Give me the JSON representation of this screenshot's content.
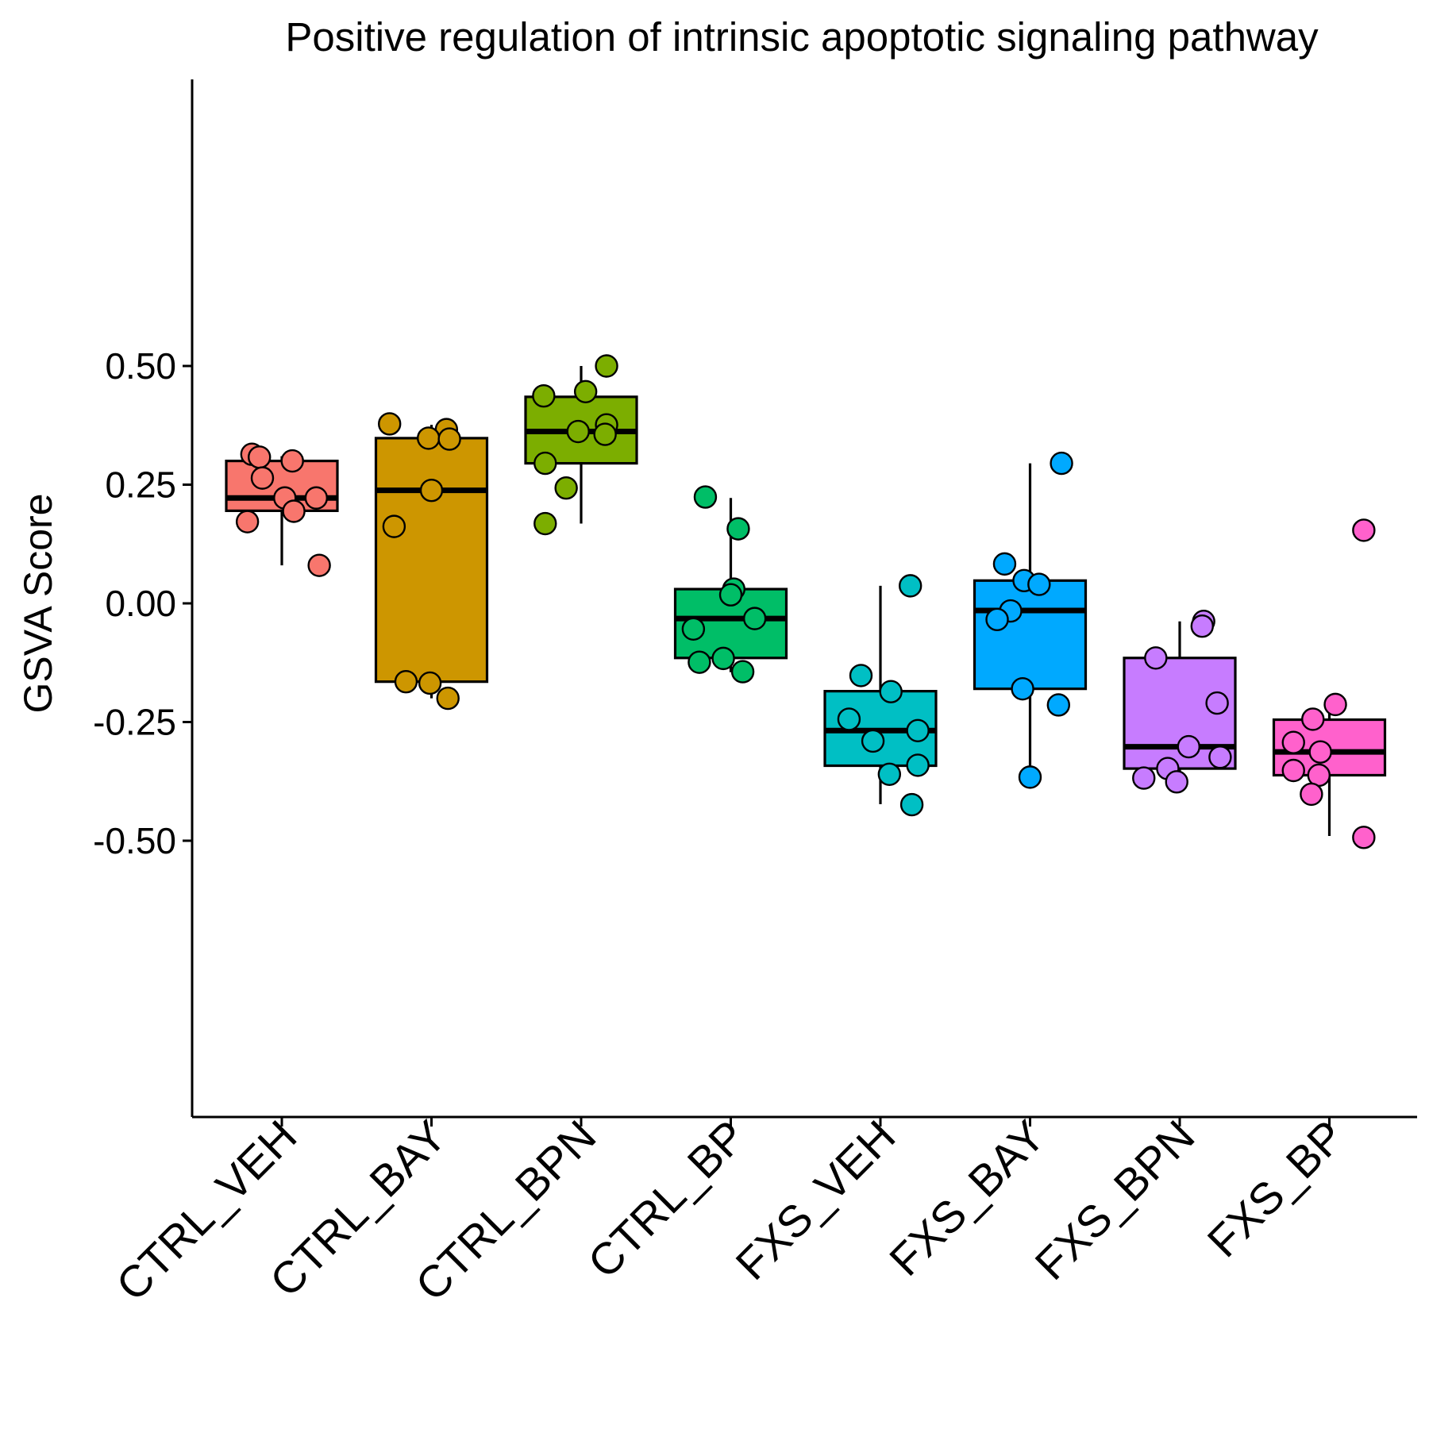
{
  "chart_data": {
    "type": "box",
    "title": "Positive regulation of intrinsic apoptotic signaling pathway",
    "ylabel": "GSVA Score",
    "xlabel": "",
    "ylim": [
      -0.55,
      0.55
    ],
    "yticks": [
      0.5,
      0.25,
      0.0,
      -0.25,
      -0.5
    ],
    "ytick_labels": [
      "0.50",
      "0.25",
      "0.00",
      "-0.25",
      "-0.50"
    ],
    "grid": false,
    "legend": "none",
    "groups": [
      {
        "name": "CTRL_VEH",
        "color": "#F8766D",
        "box": {
          "whisker_low": 0.08,
          "q1": 0.195,
          "median": 0.222,
          "q3": 0.3,
          "whisker_high": 0.31
        },
        "points": [
          {
            "y": 0.314,
            "j": -0.2
          },
          {
            "y": 0.308,
            "j": -0.15
          },
          {
            "y": 0.3,
            "j": 0.07
          },
          {
            "y": 0.264,
            "j": -0.13
          },
          {
            "y": 0.222,
            "j": 0.02
          },
          {
            "y": 0.222,
            "j": 0.23
          },
          {
            "y": 0.194,
            "j": 0.08
          },
          {
            "y": 0.172,
            "j": -0.23
          },
          {
            "y": 0.08,
            "j": 0.25
          }
        ]
      },
      {
        "name": "CTRL_BAY",
        "color": "#CD9600",
        "box": {
          "whisker_low": -0.2,
          "q1": -0.165,
          "median": 0.238,
          "q3": 0.348,
          "whisker_high": 0.376
        },
        "points": [
          {
            "y": 0.378,
            "j": -0.28
          },
          {
            "y": 0.366,
            "j": 0.1
          },
          {
            "y": 0.348,
            "j": -0.02
          },
          {
            "y": 0.346,
            "j": 0.12
          },
          {
            "y": 0.238,
            "j": 0.0
          },
          {
            "y": 0.162,
            "j": -0.25
          },
          {
            "y": -0.165,
            "j": -0.17
          },
          {
            "y": -0.168,
            "j": -0.01
          },
          {
            "y": -0.2,
            "j": 0.11
          }
        ]
      },
      {
        "name": "CTRL_BPN",
        "color": "#7CAE00",
        "box": {
          "whisker_low": 0.168,
          "q1": 0.295,
          "median": 0.362,
          "q3": 0.435,
          "whisker_high": 0.5
        },
        "points": [
          {
            "y": 0.5,
            "j": 0.17
          },
          {
            "y": 0.446,
            "j": 0.03
          },
          {
            "y": 0.437,
            "j": -0.25
          },
          {
            "y": 0.376,
            "j": 0.17
          },
          {
            "y": 0.362,
            "j": -0.02
          },
          {
            "y": 0.356,
            "j": 0.16
          },
          {
            "y": 0.295,
            "j": -0.24
          },
          {
            "y": 0.243,
            "j": -0.1
          },
          {
            "y": 0.168,
            "j": -0.24
          }
        ]
      },
      {
        "name": "CTRL_BP",
        "color": "#00BE67",
        "box": {
          "whisker_low": -0.145,
          "q1": -0.115,
          "median": -0.032,
          "q3": 0.03,
          "whisker_high": 0.222
        },
        "points": [
          {
            "y": 0.224,
            "j": -0.17
          },
          {
            "y": 0.157,
            "j": 0.05
          },
          {
            "y": 0.03,
            "j": 0.02
          },
          {
            "y": 0.018,
            "j": 0.0
          },
          {
            "y": -0.032,
            "j": 0.16
          },
          {
            "y": -0.054,
            "j": -0.25
          },
          {
            "y": -0.116,
            "j": -0.05
          },
          {
            "y": -0.124,
            "j": -0.21
          },
          {
            "y": -0.144,
            "j": 0.08
          }
        ]
      },
      {
        "name": "FXS_VEH",
        "color": "#00BFC4",
        "box": {
          "whisker_low": -0.423,
          "q1": -0.342,
          "median": -0.268,
          "q3": -0.185,
          "whisker_high": 0.037
        },
        "points": [
          {
            "y": 0.037,
            "j": 0.2
          },
          {
            "y": -0.152,
            "j": -0.13
          },
          {
            "y": -0.186,
            "j": 0.07
          },
          {
            "y": -0.244,
            "j": -0.21
          },
          {
            "y": -0.268,
            "j": 0.25
          },
          {
            "y": -0.29,
            "j": -0.05
          },
          {
            "y": -0.341,
            "j": 0.25
          },
          {
            "y": -0.36,
            "j": 0.06
          },
          {
            "y": -0.424,
            "j": 0.21
          }
        ]
      },
      {
        "name": "FXS_BAY",
        "color": "#00A9FF",
        "box": {
          "whisker_low": -0.365,
          "q1": -0.18,
          "median": -0.015,
          "q3": 0.048,
          "whisker_high": 0.295
        },
        "points": [
          {
            "y": 0.295,
            "j": 0.21
          },
          {
            "y": 0.083,
            "j": -0.17
          },
          {
            "y": 0.048,
            "j": -0.04
          },
          {
            "y": 0.04,
            "j": 0.06
          },
          {
            "y": -0.016,
            "j": -0.13
          },
          {
            "y": -0.034,
            "j": -0.22
          },
          {
            "y": -0.18,
            "j": -0.05
          },
          {
            "y": -0.214,
            "j": 0.19
          },
          {
            "y": -0.366,
            "j": 0.0
          }
        ]
      },
      {
        "name": "FXS_BPN",
        "color": "#C77CFF",
        "box": {
          "whisker_low": -0.37,
          "q1": -0.348,
          "median": -0.302,
          "q3": -0.115,
          "whisker_high": -0.038
        },
        "points": [
          {
            "y": -0.038,
            "j": 0.16
          },
          {
            "y": -0.048,
            "j": 0.15
          },
          {
            "y": -0.115,
            "j": -0.16
          },
          {
            "y": -0.21,
            "j": 0.25
          },
          {
            "y": -0.302,
            "j": 0.06
          },
          {
            "y": -0.324,
            "j": 0.27
          },
          {
            "y": -0.348,
            "j": -0.08
          },
          {
            "y": -0.368,
            "j": -0.24
          },
          {
            "y": -0.376,
            "j": -0.02
          }
        ]
      },
      {
        "name": "FXS_BP",
        "color": "#FF61CC",
        "box": {
          "whisker_low": -0.49,
          "q1": -0.362,
          "median": -0.313,
          "q3": -0.245,
          "whisker_high": -0.213
        },
        "points": [
          {
            "y": 0.154,
            "j": 0.23
          },
          {
            "y": -0.213,
            "j": 0.04
          },
          {
            "y": -0.244,
            "j": -0.11
          },
          {
            "y": -0.293,
            "j": -0.24
          },
          {
            "y": -0.313,
            "j": -0.06
          },
          {
            "y": -0.352,
            "j": -0.24
          },
          {
            "y": -0.362,
            "j": -0.07
          },
          {
            "y": -0.402,
            "j": -0.12
          },
          {
            "y": -0.493,
            "j": 0.23
          }
        ]
      }
    ]
  }
}
